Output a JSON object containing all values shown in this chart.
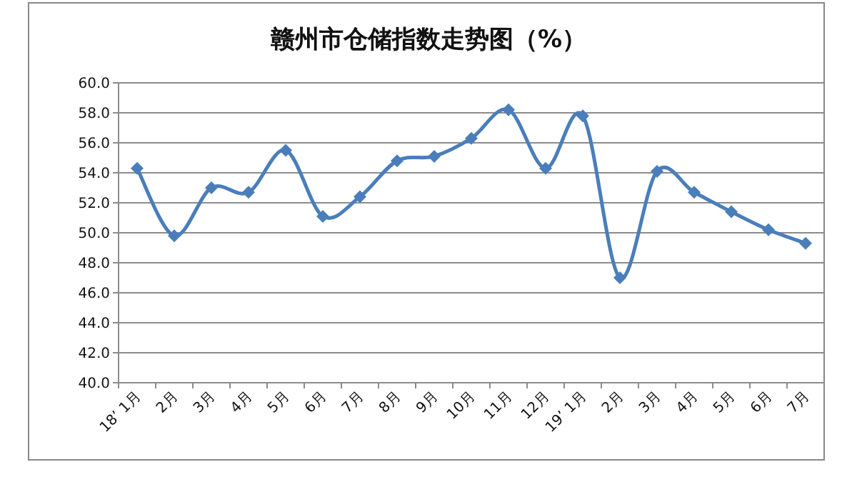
{
  "chart_data": {
    "type": "line",
    "title": "赣州市仓储指数走势图（%）",
    "categories": [
      "18’ 1月",
      "2月",
      "3月",
      "4月",
      "5月",
      "6月",
      "7月",
      "8月",
      "9月",
      "10月",
      "11月",
      "12月",
      "19’ 1月",
      "2月",
      "3月",
      "4月",
      "5月",
      "6月",
      "7月"
    ],
    "series": [
      {
        "color": "#4a7ebb",
        "values": [
          54.3,
          49.8,
          53.0,
          52.7,
          55.5,
          51.1,
          52.4,
          54.8,
          55.1,
          56.3,
          58.2,
          54.3,
          57.8,
          47.0,
          54.1,
          52.7,
          51.4,
          50.2,
          49.3
        ]
      }
    ],
    "ylim": [
      40,
      60
    ],
    "yticks": [
      {
        "value": 40,
        "label": "40.0"
      },
      {
        "value": 42,
        "label": "42.0"
      },
      {
        "value": 44,
        "label": "44.0"
      },
      {
        "value": 46,
        "label": "46.0"
      },
      {
        "value": 48,
        "label": "48.0"
      },
      {
        "value": 50,
        "label": "50.0"
      },
      {
        "value": 52,
        "label": "52.0"
      },
      {
        "value": 54,
        "label": "54.0"
      },
      {
        "value": 56,
        "label": "56.0"
      },
      {
        "value": 58,
        "label": "58.0"
      },
      {
        "value": 60,
        "label": "60.0"
      }
    ],
    "grid": "y",
    "marker": "diamond",
    "line_style": "solid"
  }
}
